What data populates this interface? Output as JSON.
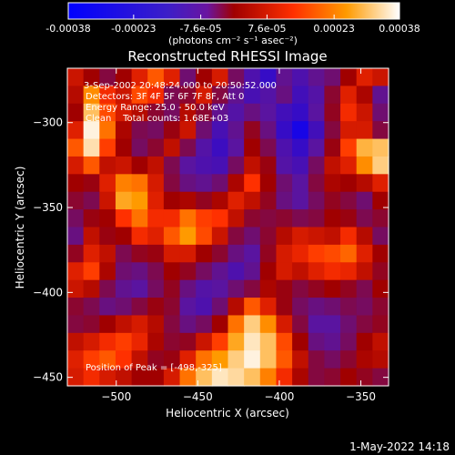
{
  "colorbar": {
    "ticks": [
      "-0.00038",
      "-0.00023",
      "-7.6e-05",
      "7.6e-05",
      "0.00023",
      "0.00038"
    ],
    "tick_values": [
      -0.00038,
      -0.00023,
      -7.6e-05,
      7.6e-05,
      0.00023,
      0.00038
    ],
    "unit_label": "(photons cm⁻² s⁻¹ asec⁻²)"
  },
  "annotations": {
    "time_range": "3-Sep-2002 20:48:24.000 to 20:50:52.000",
    "detectors": "Detectors: 3F 4F 5F 6F 7F 8F, Att 0",
    "energy": "Energy Range: 25.0 - 50.0 keV",
    "method": "Clean    Total counts: 1.68E+03",
    "peak": "Position of Peak = [-498,-325]"
  },
  "footer": {
    "datetime": "1-May-2022 14:18"
  },
  "chart_data": {
    "type": "heatmap",
    "title": "Reconstructed RHESSI Image",
    "xlabel": "Heliocentric X (arcsec)",
    "ylabel": "Heliocentric Y (arcsec)",
    "xlim": [
      -530,
      -333
    ],
    "ylim": [
      -455,
      -268
    ],
    "x_ticks": [
      -500,
      -450,
      -400,
      -350
    ],
    "x_tick_labels": [
      "−500",
      "−450",
      "−400",
      "−350"
    ],
    "y_ticks": [
      -300,
      -350,
      -400,
      -450
    ],
    "y_tick_labels": [
      "−300",
      "−350",
      "−400",
      "−450"
    ],
    "colormap": [
      "#0000ff",
      "#5a14a0",
      "#a00000",
      "#ff3000",
      "#ff9a00",
      "#ffffff"
    ],
    "grid": false,
    "intensity_grid": [
      [
        0.58,
        0.5,
        0.42,
        0.5,
        0.62,
        0.74,
        0.62,
        0.36,
        0.5,
        0.6,
        0.38,
        0.26,
        0.18,
        0.32,
        0.26,
        0.32,
        0.36,
        0.5,
        0.62,
        0.58
      ],
      [
        0.54,
        0.82,
        0.66,
        0.58,
        0.72,
        0.66,
        0.4,
        0.44,
        0.6,
        0.42,
        0.32,
        0.24,
        0.28,
        0.34,
        0.22,
        0.28,
        0.44,
        0.62,
        0.52,
        0.32
      ],
      [
        0.5,
        0.9,
        0.72,
        0.6,
        0.54,
        0.44,
        0.38,
        0.54,
        0.44,
        0.32,
        0.28,
        0.34,
        0.3,
        0.22,
        0.18,
        0.3,
        0.46,
        0.66,
        0.58,
        0.36
      ],
      [
        0.62,
        0.98,
        0.78,
        0.52,
        0.4,
        0.38,
        0.48,
        0.58,
        0.36,
        0.24,
        0.32,
        0.46,
        0.34,
        0.18,
        0.08,
        0.22,
        0.42,
        0.6,
        0.6,
        0.42
      ],
      [
        0.74,
        0.95,
        0.7,
        0.5,
        0.38,
        0.44,
        0.56,
        0.4,
        0.28,
        0.2,
        0.3,
        0.5,
        0.4,
        0.26,
        0.18,
        0.3,
        0.48,
        0.7,
        0.88,
        0.9
      ],
      [
        0.6,
        0.74,
        0.56,
        0.58,
        0.5,
        0.56,
        0.4,
        0.3,
        0.26,
        0.24,
        0.38,
        0.56,
        0.48,
        0.28,
        0.24,
        0.38,
        0.56,
        0.62,
        0.82,
        0.92
      ],
      [
        0.5,
        0.48,
        0.62,
        0.8,
        0.78,
        0.6,
        0.42,
        0.34,
        0.32,
        0.36,
        0.52,
        0.68,
        0.5,
        0.36,
        0.3,
        0.42,
        0.52,
        0.5,
        0.54,
        0.62
      ],
      [
        0.44,
        0.4,
        0.58,
        0.86,
        0.84,
        0.62,
        0.5,
        0.52,
        0.46,
        0.52,
        0.62,
        0.56,
        0.46,
        0.34,
        0.3,
        0.38,
        0.46,
        0.42,
        0.36,
        0.5
      ],
      [
        0.38,
        0.48,
        0.5,
        0.68,
        0.78,
        0.66,
        0.66,
        0.78,
        0.7,
        0.68,
        0.56,
        0.44,
        0.42,
        0.44,
        0.4,
        0.42,
        0.5,
        0.48,
        0.4,
        0.44
      ],
      [
        0.34,
        0.56,
        0.48,
        0.5,
        0.66,
        0.62,
        0.74,
        0.84,
        0.72,
        0.58,
        0.42,
        0.36,
        0.44,
        0.54,
        0.6,
        0.58,
        0.56,
        0.66,
        0.54,
        0.38
      ],
      [
        0.46,
        0.62,
        0.56,
        0.4,
        0.46,
        0.48,
        0.6,
        0.6,
        0.5,
        0.44,
        0.34,
        0.3,
        0.46,
        0.6,
        0.64,
        0.7,
        0.72,
        0.76,
        0.62,
        0.5
      ],
      [
        0.62,
        0.7,
        0.52,
        0.36,
        0.34,
        0.4,
        0.5,
        0.46,
        0.38,
        0.32,
        0.26,
        0.32,
        0.5,
        0.6,
        0.56,
        0.62,
        0.66,
        0.64,
        0.56,
        0.46
      ],
      [
        0.58,
        0.54,
        0.4,
        0.32,
        0.3,
        0.38,
        0.46,
        0.34,
        0.28,
        0.3,
        0.36,
        0.42,
        0.52,
        0.48,
        0.42,
        0.46,
        0.5,
        0.46,
        0.4,
        0.5
      ],
      [
        0.44,
        0.4,
        0.34,
        0.36,
        0.42,
        0.48,
        0.44,
        0.3,
        0.26,
        0.36,
        0.54,
        0.74,
        0.62,
        0.48,
        0.38,
        0.34,
        0.36,
        0.4,
        0.38,
        0.44
      ],
      [
        0.42,
        0.44,
        0.5,
        0.56,
        0.6,
        0.54,
        0.42,
        0.34,
        0.38,
        0.5,
        0.78,
        0.92,
        0.82,
        0.6,
        0.42,
        0.3,
        0.3,
        0.36,
        0.42,
        0.46
      ],
      [
        0.56,
        0.6,
        0.66,
        0.7,
        0.64,
        0.52,
        0.44,
        0.46,
        0.58,
        0.7,
        0.86,
        0.96,
        0.9,
        0.72,
        0.5,
        0.34,
        0.32,
        0.38,
        0.5,
        0.56
      ],
      [
        0.62,
        0.7,
        0.74,
        0.68,
        0.56,
        0.46,
        0.48,
        0.62,
        0.78,
        0.84,
        0.92,
        0.98,
        0.9,
        0.74,
        0.56,
        0.42,
        0.38,
        0.44,
        0.52,
        0.54
      ],
      [
        0.6,
        0.66,
        0.6,
        0.56,
        0.5,
        0.5,
        0.6,
        0.78,
        0.9,
        0.96,
        0.94,
        0.9,
        0.8,
        0.66,
        0.52,
        0.42,
        0.44,
        0.5,
        0.46,
        0.42
      ]
    ]
  }
}
